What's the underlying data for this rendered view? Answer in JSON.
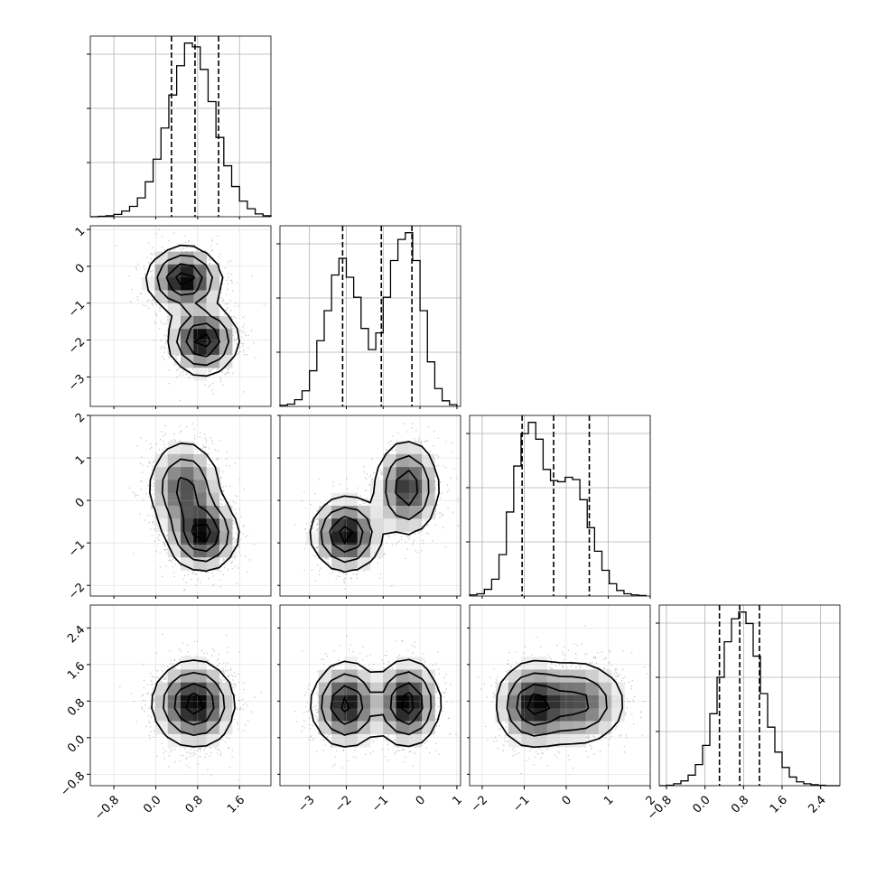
{
  "chart_data": {
    "type": "corner",
    "title": "",
    "variables": [
      {
        "name": "",
        "range": [
          -1.25,
          2.2
        ],
        "ticks": [
          -0.8,
          0.0,
          0.8,
          1.6
        ],
        "tick_labels": [
          "−0.8",
          "0.0",
          "0.8",
          "1.6"
        ],
        "quantiles": [
          0.3,
          0.75,
          1.2
        ],
        "hist_bins": [
          -1.25,
          -1.1,
          -0.95,
          -0.8,
          -0.65,
          -0.5,
          -0.35,
          -0.2,
          -0.05,
          0.1,
          0.25,
          0.4,
          0.55,
          0.7,
          0.85,
          1.0,
          1.15,
          1.3,
          1.45,
          1.6,
          1.75,
          1.9,
          2.05,
          2.2
        ],
        "hist_counts": [
          0,
          1,
          2,
          5,
          12,
          22,
          40,
          74,
          122,
          188,
          258,
          320,
          368,
          360,
          312,
          244,
          168,
          108,
          64,
          33,
          17,
          6,
          2
        ]
      },
      {
        "name": "",
        "range": [
          -3.8,
          1.1
        ],
        "ticks": [
          -3,
          -2,
          -1,
          0,
          1
        ],
        "tick_labels": [
          "−3",
          "−2",
          "−1",
          "0",
          "1"
        ],
        "y_range": [
          -3.8,
          1.1
        ],
        "quantiles": [
          -2.1,
          -1.05,
          -0.22
        ],
        "hist_bins": [
          -3.8,
          -3.6,
          -3.4,
          -3.2,
          -3.0,
          -2.8,
          -2.6,
          -2.4,
          -2.2,
          -2.0,
          -1.8,
          -1.6,
          -1.4,
          -1.2,
          -1.0,
          -0.8,
          -0.6,
          -0.4,
          -0.2,
          0.0,
          0.2,
          0.4,
          0.6,
          0.8,
          1.0
        ],
        "hist_counts": [
          2,
          4,
          12,
          28,
          64,
          118,
          172,
          236,
          266,
          232,
          196,
          140,
          102,
          132,
          196,
          262,
          300,
          312,
          262,
          172,
          80,
          32,
          10,
          3
        ]
      },
      {
        "name": "",
        "range": [
          -2.3,
          2.0
        ],
        "ticks": [
          -2,
          -1,
          0,
          1,
          2
        ],
        "tick_labels": [
          "−2",
          "−1",
          "0",
          "1",
          "2"
        ],
        "y_range": [
          -2.25,
          2.0
        ],
        "quantiles": [
          -1.05,
          -0.3,
          0.55
        ],
        "hist_bins": [
          -2.3,
          -2.125,
          -1.95,
          -1.775,
          -1.6,
          -1.425,
          -1.25,
          -1.075,
          -0.9,
          -0.725,
          -0.55,
          -0.375,
          -0.2,
          -0.025,
          0.15,
          0.325,
          0.5,
          0.675,
          0.85,
          1.025,
          1.2,
          1.375,
          1.55,
          1.725,
          1.9
        ],
        "hist_counts": [
          2,
          4,
          12,
          30,
          74,
          150,
          232,
          290,
          310,
          280,
          226,
          206,
          204,
          212,
          208,
          172,
          122,
          80,
          46,
          22,
          10,
          4,
          2,
          1
        ]
      },
      {
        "name": "",
        "range": [
          -0.95,
          2.8
        ],
        "ticks": [
          -0.8,
          0.0,
          0.8,
          1.6,
          2.4
        ],
        "tick_labels": [
          "−0.8",
          "0.0",
          "0.8",
          "1.6",
          "2.4"
        ],
        "y_range": [
          -1.05,
          2.9
        ],
        "quantiles": [
          0.3,
          0.72,
          1.13
        ],
        "hist_bins": [
          -0.95,
          -0.8,
          -0.65,
          -0.5,
          -0.35,
          -0.2,
          -0.05,
          0.1,
          0.25,
          0.4,
          0.55,
          0.7,
          0.85,
          1.0,
          1.15,
          1.3,
          1.45,
          1.6,
          1.75,
          1.9,
          2.05,
          2.2,
          2.35,
          2.5,
          2.65,
          2.8
        ],
        "hist_counts": [
          0,
          1,
          4,
          10,
          22,
          44,
          84,
          150,
          226,
          300,
          348,
          362,
          338,
          270,
          192,
          122,
          70,
          38,
          18,
          8,
          4,
          2,
          1,
          0,
          0
        ]
      }
    ],
    "modes": [
      {
        "weight": 0.5,
        "mean": [
          0.55,
          -0.35,
          0.3,
          0.75
        ],
        "sd": [
          0.34,
          0.42,
          0.55,
          0.45
        ]
      },
      {
        "weight": 0.5,
        "mean": [
          0.9,
          -2.0,
          -0.8,
          0.72
        ],
        "sd": [
          0.32,
          0.45,
          0.42,
          0.45
        ]
      }
    ],
    "grid": true,
    "quantile_style": "dashed",
    "contours": true
  }
}
